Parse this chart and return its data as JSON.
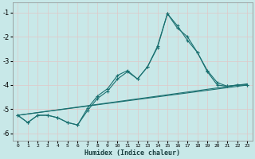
{
  "xlabel": "Humidex (Indice chaleur)",
  "xlim": [
    -0.5,
    23.5
  ],
  "ylim": [
    -6.3,
    -0.6
  ],
  "yticks": [
    -6,
    -5,
    -4,
    -3,
    -2,
    -1
  ],
  "xticks": [
    0,
    1,
    2,
    3,
    4,
    5,
    6,
    7,
    8,
    9,
    10,
    11,
    12,
    13,
    14,
    15,
    16,
    17,
    18,
    19,
    20,
    21,
    22,
    23
  ],
  "bg_color": "#c8e8e8",
  "grid_color": "#b0d0d0",
  "line_color": "#1a7070",
  "line1": {
    "x": [
      0,
      1,
      2,
      3,
      4,
      5,
      6,
      7,
      8,
      9,
      10,
      11,
      12,
      13,
      14,
      15,
      16,
      17,
      18,
      19,
      20,
      21,
      22,
      23
    ],
    "y": [
      -5.25,
      -5.55,
      -5.25,
      -5.25,
      -5.35,
      -5.55,
      -5.65,
      -5.05,
      -4.55,
      -4.25,
      -3.75,
      -3.45,
      -3.75,
      -3.25,
      -2.45,
      -1.05,
      -1.55,
      -2.15,
      -2.65,
      -3.45,
      -4.0,
      -4.05,
      -4.0,
      -4.0
    ]
  },
  "line2": {
    "x": [
      0,
      1,
      2,
      3,
      4,
      5,
      6,
      7,
      8,
      9,
      10,
      11,
      12,
      13,
      14,
      15,
      16,
      17,
      18,
      19,
      20,
      21,
      22,
      23
    ],
    "y": [
      -5.25,
      -5.55,
      -5.25,
      -5.25,
      -5.35,
      -5.55,
      -5.65,
      -4.95,
      -4.45,
      -4.15,
      -3.6,
      -3.4,
      -3.75,
      -3.25,
      -2.4,
      -1.05,
      -1.65,
      -2.0,
      -2.65,
      -3.4,
      -3.9,
      -4.05,
      -4.0,
      -4.0
    ]
  },
  "line3": {
    "x": [
      0,
      23
    ],
    "y": [
      -5.25,
      -4.0
    ]
  },
  "line4": {
    "x": [
      0,
      23
    ],
    "y": [
      -5.25,
      -3.95
    ]
  }
}
